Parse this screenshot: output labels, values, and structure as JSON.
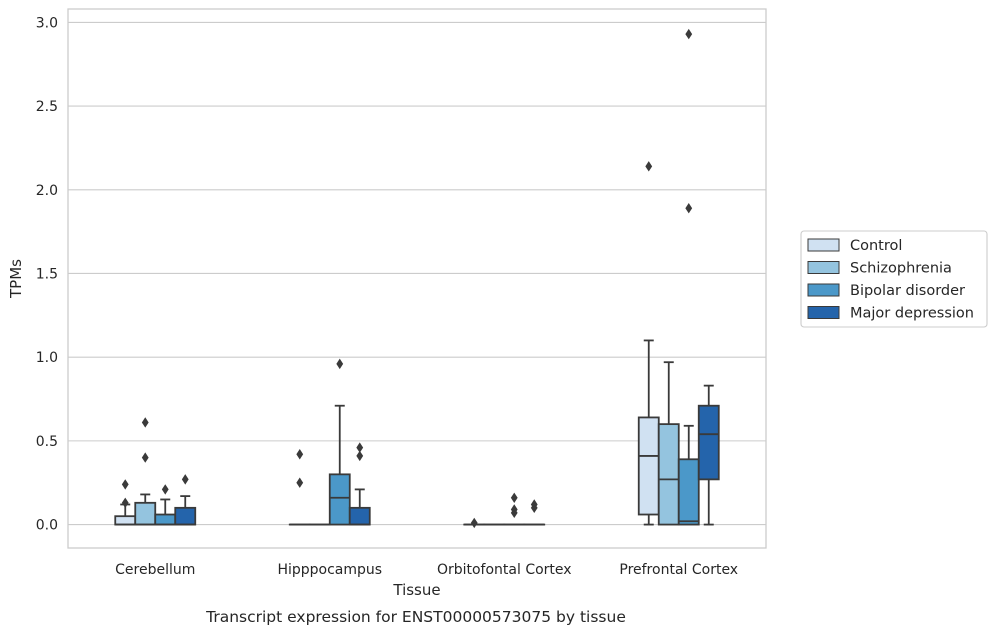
{
  "caption": "Transcript expression for ENST00000573075 by tissue",
  "chart_data": {
    "type": "box",
    "xlabel": "Tissue",
    "ylabel": "TPMs",
    "ylim": [
      -0.14,
      3.08
    ],
    "yticks": [
      0.0,
      0.5,
      1.0,
      1.5,
      2.0,
      2.5,
      3.0
    ],
    "ytick_labels": [
      "0.0",
      "0.5",
      "1.0",
      "1.5",
      "2.0",
      "2.5",
      "3.0"
    ],
    "grid": "horizontal",
    "legend_position": "right",
    "categories": [
      "Cerebellum",
      "Hipppocampus",
      "Orbitofontal Cortex",
      "Prefrontal Cortex"
    ],
    "series": [
      {
        "name": "Control",
        "color": "#d0e1f2",
        "boxes": [
          {
            "whisker_low": 0.0,
            "q1": 0.0,
            "median": 0.0,
            "q3": 0.05,
            "whisker_high": 0.12,
            "outliers": [
              0.13,
              0.24
            ]
          },
          {
            "whisker_low": 0.0,
            "q1": 0.0,
            "median": 0.0,
            "q3": 0.0,
            "whisker_high": 0.0,
            "outliers": [
              0.25,
              0.42
            ]
          },
          {
            "whisker_low": 0.0,
            "q1": 0.0,
            "median": 0.0,
            "q3": 0.0,
            "whisker_high": 0.0,
            "outliers": [
              0.01
            ]
          },
          {
            "whisker_low": 0.0,
            "q1": 0.06,
            "median": 0.41,
            "q3": 0.64,
            "whisker_high": 1.1,
            "outliers": [
              2.14
            ]
          }
        ]
      },
      {
        "name": "Schizophrenia",
        "color": "#94c4df",
        "boxes": [
          {
            "whisker_low": 0.0,
            "q1": 0.0,
            "median": 0.0,
            "q3": 0.13,
            "whisker_high": 0.18,
            "outliers": [
              0.4,
              0.61
            ]
          },
          {
            "whisker_low": 0.0,
            "q1": 0.0,
            "median": 0.0,
            "q3": 0.0,
            "whisker_high": 0.0,
            "outliers": []
          },
          {
            "whisker_low": 0.0,
            "q1": 0.0,
            "median": 0.0,
            "q3": 0.0,
            "whisker_high": 0.0,
            "outliers": []
          },
          {
            "whisker_low": 0.0,
            "q1": 0.0,
            "median": 0.27,
            "q3": 0.6,
            "whisker_high": 0.97,
            "outliers": []
          }
        ]
      },
      {
        "name": "Bipolar disorder",
        "color": "#4b98c9",
        "boxes": [
          {
            "whisker_low": 0.0,
            "q1": 0.0,
            "median": 0.0,
            "q3": 0.06,
            "whisker_high": 0.15,
            "outliers": [
              0.21
            ]
          },
          {
            "whisker_low": 0.0,
            "q1": 0.0,
            "median": 0.16,
            "q3": 0.3,
            "whisker_high": 0.71,
            "outliers": [
              0.96
            ]
          },
          {
            "whisker_low": 0.0,
            "q1": 0.0,
            "median": 0.0,
            "q3": 0.0,
            "whisker_high": 0.0,
            "outliers": [
              0.07,
              0.09,
              0.16
            ]
          },
          {
            "whisker_low": 0.0,
            "q1": 0.0,
            "median": 0.02,
            "q3": 0.39,
            "whisker_high": 0.59,
            "outliers": [
              1.89,
              2.93
            ]
          }
        ]
      },
      {
        "name": "Major depression",
        "color": "#2464ab",
        "boxes": [
          {
            "whisker_low": 0.0,
            "q1": 0.0,
            "median": 0.0,
            "q3": 0.1,
            "whisker_high": 0.17,
            "outliers": [
              0.27
            ]
          },
          {
            "whisker_low": 0.0,
            "q1": 0.0,
            "median": 0.0,
            "q3": 0.1,
            "whisker_high": 0.21,
            "outliers": [
              0.41,
              0.46
            ]
          },
          {
            "whisker_low": 0.0,
            "q1": 0.0,
            "median": 0.0,
            "q3": 0.0,
            "whisker_high": 0.0,
            "outliers": [
              0.1,
              0.12
            ]
          },
          {
            "whisker_low": 0.0,
            "q1": 0.27,
            "median": 0.54,
            "q3": 0.71,
            "whisker_high": 0.83,
            "outliers": []
          }
        ]
      }
    ]
  }
}
